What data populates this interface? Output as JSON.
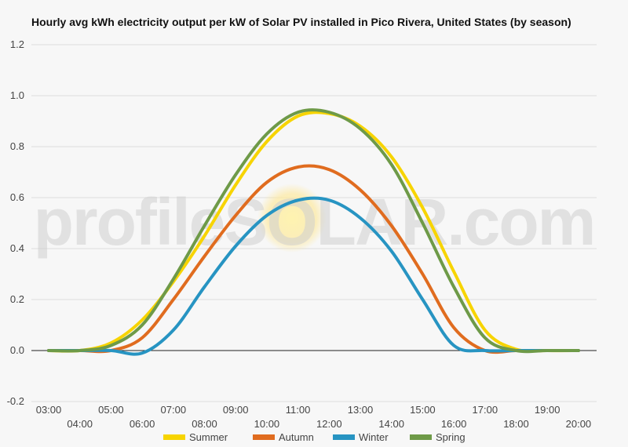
{
  "watermark_text": "profileSOLAR.com",
  "chart_data": {
    "type": "line",
    "title": "Hourly avg kWh electricity output per kW of Solar PV installed in Pico Rivera, United States (by season)",
    "xlabel": "",
    "ylabel": "",
    "x_labels": [
      "03:00",
      "04:00",
      "05:00",
      "06:00",
      "07:00",
      "08:00",
      "09:00",
      "10:00",
      "11:00",
      "12:00",
      "13:00",
      "14:00",
      "15:00",
      "16:00",
      "17:00",
      "18:00",
      "19:00",
      "20:00"
    ],
    "y_ticks": [
      "-0.2",
      "0.0",
      "0.2",
      "0.4",
      "0.6",
      "0.8",
      "1.0",
      "1.2"
    ],
    "ylim": [
      -0.2,
      1.2
    ],
    "grid": true,
    "legend_position": "bottom",
    "series": [
      {
        "name": "Summer",
        "color": "#f7d400",
        "values": [
          0,
          0,
          0.03,
          0.12,
          0.27,
          0.45,
          0.65,
          0.82,
          0.92,
          0.93,
          0.88,
          0.76,
          0.56,
          0.31,
          0.08,
          0.005,
          0,
          0
        ]
      },
      {
        "name": "Autumn",
        "color": "#e06c1f",
        "values": [
          0,
          0,
          0,
          0.05,
          0.2,
          0.37,
          0.53,
          0.66,
          0.72,
          0.71,
          0.63,
          0.49,
          0.3,
          0.09,
          0,
          0,
          0,
          0
        ]
      },
      {
        "name": "Winter",
        "color": "#2794c2",
        "values": [
          0,
          0,
          0,
          -0.01,
          0.08,
          0.25,
          0.41,
          0.53,
          0.59,
          0.59,
          0.52,
          0.39,
          0.2,
          0.02,
          0,
          0,
          0,
          0
        ]
      },
      {
        "name": "Spring",
        "color": "#6e9a48",
        "values": [
          0,
          0,
          0.02,
          0.1,
          0.28,
          0.49,
          0.69,
          0.85,
          0.935,
          0.935,
          0.87,
          0.73,
          0.5,
          0.25,
          0.05,
          0,
          0,
          0
        ]
      }
    ]
  }
}
